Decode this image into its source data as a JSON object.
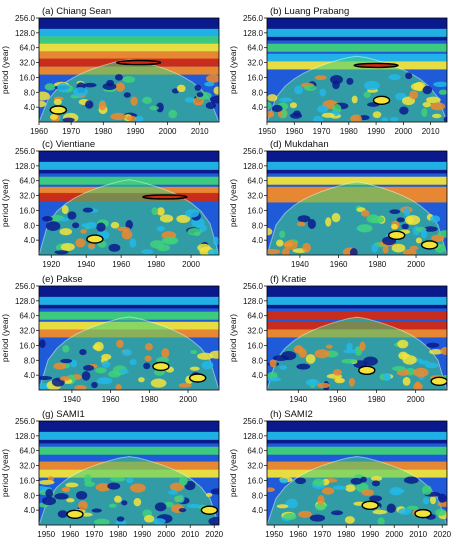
{
  "colors": {
    "navy": "#0a1a8c",
    "blue": "#1f5bd9",
    "cyan": "#22b8e8",
    "green": "#3fd17a",
    "yellow": "#f2e43a",
    "orange": "#f08a2a",
    "red": "#d22a12",
    "contour": "#000000"
  },
  "ylabel": "period (year)",
  "yticks": [
    "4.0",
    "8.0",
    "16.0",
    "32.0",
    "64.0",
    "128.0",
    "256.0"
  ],
  "chart_data": [
    {
      "type": "heatmap",
      "title": "(a) Chiang Sean",
      "xlim": [
        1960,
        2016
      ],
      "xticks": [
        1960,
        1970,
        1980,
        1990,
        2000,
        2010
      ],
      "ylim": [
        2,
        256
      ],
      "y_scale": "log2",
      "bands": [
        {
          "period": 128,
          "color": "cyan"
        },
        {
          "period": 90,
          "color": "green"
        },
        {
          "period": 64,
          "color": "yellow"
        },
        {
          "period": 45,
          "color": "orange"
        },
        {
          "period": 32,
          "color": "red"
        },
        {
          "period": 22,
          "color": "orange"
        }
      ],
      "significant": [
        {
          "x": 1966,
          "period": 3.5
        },
        {
          "x": 1991,
          "period": 32
        }
      ]
    },
    {
      "type": "heatmap",
      "title": "(b) Luang Prabang",
      "xlim": [
        1950,
        2016
      ],
      "xticks": [
        1950,
        1960,
        1970,
        1980,
        1990,
        2000,
        2010
      ],
      "ylim": [
        2,
        256
      ],
      "y_scale": "log2",
      "bands": [
        {
          "period": 128,
          "color": "cyan"
        },
        {
          "period": 64,
          "color": "green"
        },
        {
          "period": 40,
          "color": "cyan"
        },
        {
          "period": 28,
          "color": "yellow"
        }
      ],
      "significant": [
        {
          "x": 1990,
          "period": 28
        },
        {
          "x": 1992,
          "period": 5.5
        }
      ]
    },
    {
      "type": "heatmap",
      "title": "(c) Vientiane",
      "xlim": [
        1913,
        2016
      ],
      "xticks": [
        1920,
        1940,
        1960,
        1980,
        2000
      ],
      "ylim": [
        2,
        256
      ],
      "y_scale": "log2",
      "bands": [
        {
          "period": 128,
          "color": "cyan"
        },
        {
          "period": 64,
          "color": "green"
        },
        {
          "period": 40,
          "color": "orange"
        },
        {
          "period": 30,
          "color": "red"
        }
      ],
      "significant": [
        {
          "x": 1985,
          "period": 30
        },
        {
          "x": 1945,
          "period": 4.2
        }
      ]
    },
    {
      "type": "heatmap",
      "title": "(d) Mukdahan",
      "xlim": [
        1923,
        2016
      ],
      "xticks": [
        1940,
        1960,
        1980,
        2000
      ],
      "ylim": [
        2,
        256
      ],
      "y_scale": "log2",
      "bands": [
        {
          "period": 128,
          "color": "cyan"
        },
        {
          "period": 64,
          "color": "yellow"
        },
        {
          "period": 40,
          "color": "orange"
        },
        {
          "period": 28,
          "color": "orange"
        }
      ],
      "significant": [
        {
          "x": 1990,
          "period": 5
        },
        {
          "x": 2007,
          "period": 3.2
        }
      ]
    },
    {
      "type": "heatmap",
      "title": "(e) Pakse",
      "xlim": [
        1923,
        2016
      ],
      "xticks": [
        1940,
        1960,
        1980,
        2000
      ],
      "ylim": [
        2,
        256
      ],
      "y_scale": "log2",
      "bands": [
        {
          "period": 128,
          "color": "cyan"
        },
        {
          "period": 64,
          "color": "green"
        },
        {
          "period": 40,
          "color": "yellow"
        },
        {
          "period": 28,
          "color": "orange"
        }
      ],
      "significant": [
        {
          "x": 1986,
          "period": 6
        },
        {
          "x": 2005,
          "period": 3.5
        }
      ]
    },
    {
      "type": "heatmap",
      "title": "(f) Kratie",
      "xlim": [
        1924,
        2016
      ],
      "xticks": [
        1940,
        1960,
        1980,
        2000
      ],
      "ylim": [
        2,
        256
      ],
      "y_scale": "log2",
      "bands": [
        {
          "period": 128,
          "color": "cyan"
        },
        {
          "period": 64,
          "color": "red"
        },
        {
          "period": 40,
          "color": "red"
        },
        {
          "period": 28,
          "color": "orange"
        }
      ],
      "significant": [
        {
          "x": 1975,
          "period": 5
        },
        {
          "x": 2012,
          "period": 3
        }
      ]
    },
    {
      "type": "heatmap",
      "title": "(g) SAMI1",
      "xlim": [
        1947,
        2022
      ],
      "xticks": [
        1950,
        1960,
        1970,
        1980,
        1990,
        2000,
        2010,
        2020
      ],
      "ylim": [
        2,
        256
      ],
      "y_scale": "log2",
      "bands": [
        {
          "period": 128,
          "color": "cyan"
        },
        {
          "period": 64,
          "color": "green"
        },
        {
          "period": 32,
          "color": "orange"
        },
        {
          "period": 22,
          "color": "yellow"
        }
      ],
      "significant": [
        {
          "x": 1962,
          "period": 3.3
        },
        {
          "x": 2018,
          "period": 4
        }
      ]
    },
    {
      "type": "heatmap",
      "title": "(h) SAMI2",
      "xlim": [
        1947,
        2022
      ],
      "xticks": [
        1950,
        1960,
        1970,
        1980,
        1990,
        2000,
        2010,
        2020
      ],
      "ylim": [
        2,
        256
      ],
      "y_scale": "log2",
      "bands": [
        {
          "period": 128,
          "color": "cyan"
        },
        {
          "period": 64,
          "color": "green"
        },
        {
          "period": 32,
          "color": "orange"
        },
        {
          "period": 22,
          "color": "yellow"
        }
      ],
      "significant": [
        {
          "x": 1990,
          "period": 5
        },
        {
          "x": 2012,
          "period": 3.4
        }
      ]
    }
  ]
}
